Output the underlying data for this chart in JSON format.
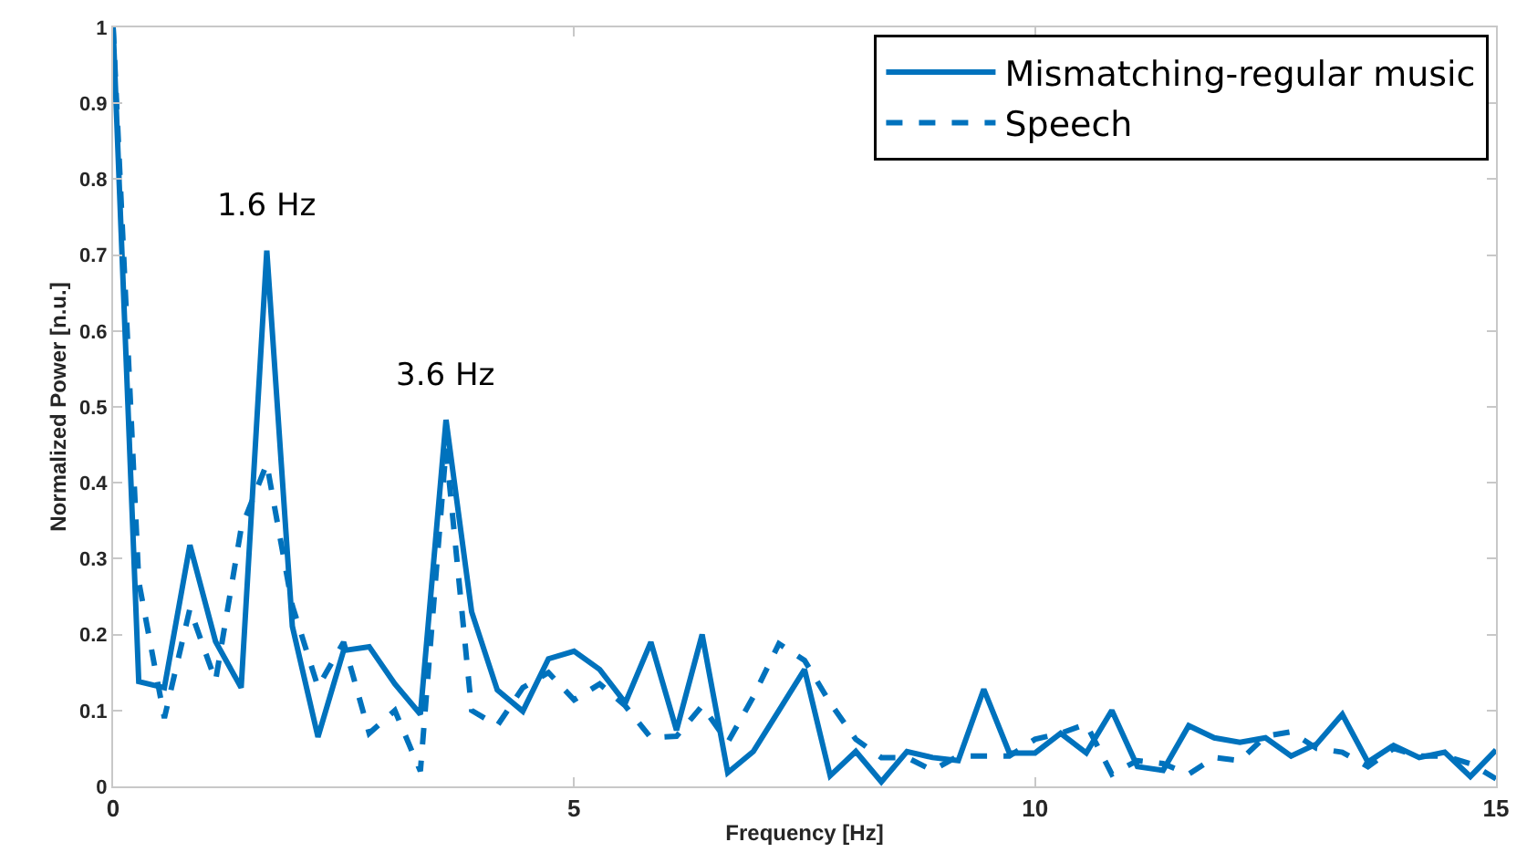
{
  "chart_data": {
    "type": "line",
    "xlabel": "Frequency [Hz]",
    "ylabel": "Normalized Power [n.u.]",
    "x": [
      0,
      0.278,
      0.556,
      0.833,
      1.111,
      1.389,
      1.667,
      1.944,
      2.222,
      2.5,
      2.778,
      3.056,
      3.333,
      3.611,
      3.889,
      4.167,
      4.444,
      4.722,
      5,
      5.278,
      5.556,
      5.833,
      6.111,
      6.389,
      6.667,
      6.944,
      7.222,
      7.5,
      7.778,
      8.056,
      8.333,
      8.611,
      8.889,
      9.167,
      9.444,
      9.722,
      10,
      10.278,
      10.556,
      10.833,
      11.111,
      11.389,
      11.667,
      11.944,
      12.222,
      12.5,
      12.778,
      13.056,
      13.333,
      13.611,
      13.889,
      14.167,
      14.444,
      14.722,
      15
    ],
    "series": [
      {
        "name": "Mismatching-regular music",
        "color": "#0072bd",
        "line_style": "solid",
        "values": [
          1.0,
          0.138,
          0.13,
          0.318,
          0.191,
          0.13,
          0.706,
          0.211,
          0.065,
          0.179,
          0.184,
          0.135,
          0.095,
          0.483,
          0.23,
          0.127,
          0.099,
          0.168,
          0.178,
          0.154,
          0.11,
          0.19,
          0.074,
          0.2,
          0.018,
          0.046,
          0.1,
          0.154,
          0.014,
          0.046,
          0.006,
          0.046,
          0.038,
          0.034,
          0.128,
          0.044,
          0.044,
          0.07,
          0.044,
          0.1,
          0.026,
          0.021,
          0.08,
          0.064,
          0.058,
          0.064,
          0.04,
          0.056,
          0.095,
          0.032,
          0.054,
          0.038,
          0.045,
          0.013,
          0.048
        ]
      },
      {
        "name": "Speech",
        "color": "#0072bd",
        "line_style": "dashed",
        "values": [
          1.0,
          0.27,
          0.09,
          0.234,
          0.139,
          0.34,
          0.425,
          0.238,
          0.131,
          0.19,
          0.07,
          0.1,
          0.02,
          0.445,
          0.1,
          0.08,
          0.13,
          0.15,
          0.114,
          0.135,
          0.106,
          0.064,
          0.066,
          0.106,
          0.058,
          0.118,
          0.188,
          0.166,
          0.11,
          0.062,
          0.038,
          0.038,
          0.021,
          0.04,
          0.04,
          0.04,
          0.062,
          0.07,
          0.082,
          0.016,
          0.034,
          0.03,
          0.016,
          0.038,
          0.034,
          0.066,
          0.072,
          0.05,
          0.045,
          0.026,
          0.05,
          0.04,
          0.04,
          0.03,
          0.01
        ]
      }
    ],
    "xlim": [
      0,
      15
    ],
    "xticks": [
      0,
      5,
      10,
      15
    ],
    "ylim": [
      0,
      1
    ],
    "yticks": [
      0,
      0.1,
      0.2,
      0.3,
      0.4,
      0.5,
      0.6,
      0.7,
      0.8,
      0.9,
      1
    ],
    "grid": false,
    "legend": "top right",
    "marker": "none",
    "annotations": [
      {
        "text": "1.6 Hz",
        "x": 1.667,
        "y": 0.706
      },
      {
        "text": "3.6 Hz",
        "x": 3.611,
        "y": 0.483
      }
    ]
  }
}
